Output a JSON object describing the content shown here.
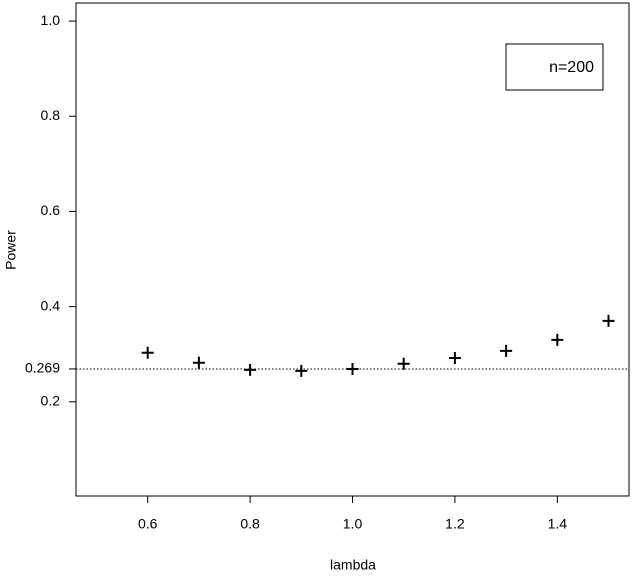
{
  "chart_data": {
    "type": "scatter",
    "marker": "plus",
    "color": "#000000",
    "x_label": "lambda",
    "y_label": "Power",
    "x": [
      0.6,
      0.7,
      0.8,
      0.9,
      1.0,
      1.1,
      1.2,
      1.3,
      1.4,
      1.5
    ],
    "values": [
      0.303,
      0.282,
      0.267,
      0.265,
      0.269,
      0.28,
      0.292,
      0.307,
      0.33,
      0.37
    ],
    "xlim": [
      0.46,
      1.54
    ],
    "ylim": [
      0.002,
      1.038
    ],
    "xticks": [
      0.6,
      0.8,
      {
        "value": 1,
        "label": "1.0"
      },
      1.2,
      1.4
    ],
    "yticks": [
      0.2,
      0.269,
      0.4,
      0.6,
      0.8,
      {
        "value": 1,
        "label": "1.0"
      }
    ],
    "hline": 0.269,
    "hline_style": "dotted",
    "legend_text": "n=200",
    "legend_corner": "topright"
  }
}
